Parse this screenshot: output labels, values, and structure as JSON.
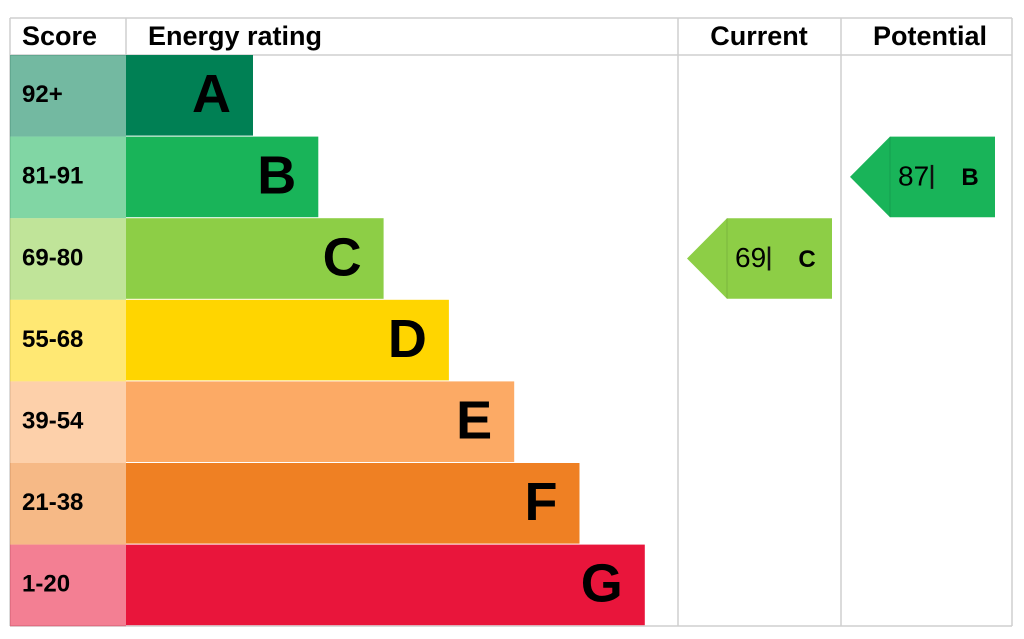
{
  "header": {
    "score": "Score",
    "rating": "Energy rating",
    "current": "Current",
    "potential": "Potential"
  },
  "bands": [
    {
      "score": "92+",
      "letter": "A",
      "color": "#008054"
    },
    {
      "score": "81-91",
      "letter": "B",
      "color": "#19b459"
    },
    {
      "score": "69-80",
      "letter": "C",
      "color": "#8dce46"
    },
    {
      "score": "55-68",
      "letter": "D",
      "color": "#ffd500"
    },
    {
      "score": "39-54",
      "letter": "E",
      "color": "#fcaa65"
    },
    {
      "score": "21-38",
      "letter": "F",
      "color": "#ef8023"
    },
    {
      "score": "1-20",
      "letter": "G",
      "color": "#e9153b"
    }
  ],
  "current": {
    "value": 69,
    "letter": "C"
  },
  "potential": {
    "value": 87,
    "letter": "B"
  }
}
